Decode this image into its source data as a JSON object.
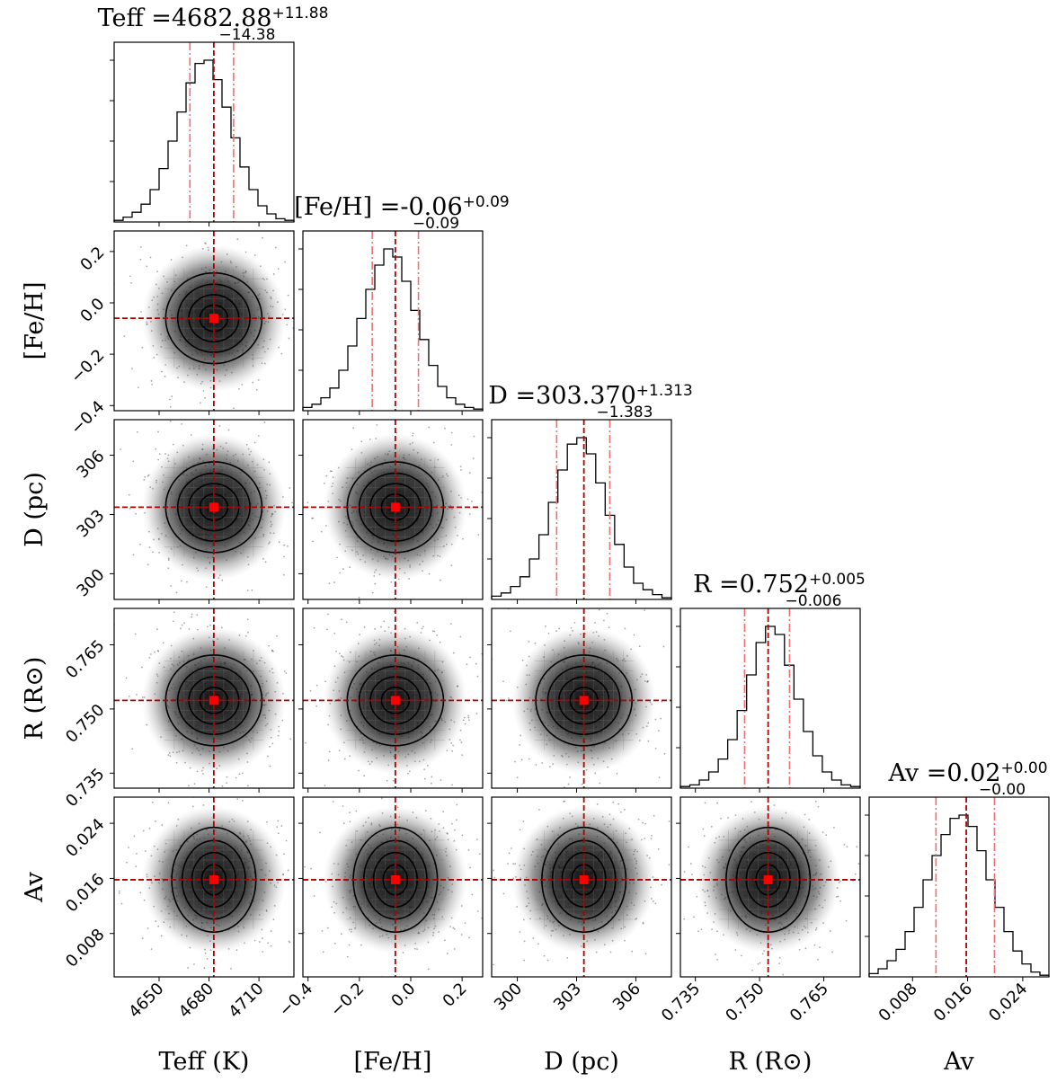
{
  "chart_data": {
    "type": "corner",
    "parameters": [
      {
        "key": "teff",
        "axis_label": "Teff (K)",
        "title_name": "Teff",
        "median": 4682.88,
        "median_text": "4682.88",
        "err_plus": "+11.88",
        "err_minus": "−14.38",
        "range": [
          4623,
          4731
        ],
        "ticks": [
          4650,
          4680,
          4710
        ],
        "tick_labels": [
          "4650",
          "4680",
          "4710"
        ],
        "q16": 4668.5,
        "q84": 4694.76
      },
      {
        "key": "feh",
        "axis_label": "[Fe/H]",
        "title_name": "[Fe/H]",
        "median": -0.06,
        "median_text": "-0.06",
        "err_plus": "+0.09",
        "err_minus": "−0.09",
        "range": [
          -0.42,
          0.28
        ],
        "ticks": [
          -0.4,
          -0.2,
          0.0,
          0.2
        ],
        "tick_labels": [
          "−0.4",
          "−0.2",
          "0.0",
          "0.2"
        ],
        "q16": -0.15,
        "q84": 0.03
      },
      {
        "key": "d",
        "axis_label": "D (pc)",
        "title_name": "D",
        "median": 303.37,
        "median_text": "303.370",
        "err_plus": "+1.313",
        "err_minus": "−1.383",
        "range": [
          298.7,
          307.8
        ],
        "ticks": [
          300,
          303,
          306
        ],
        "tick_labels": [
          "300",
          "303",
          "306"
        ],
        "q16": 301.99,
        "q84": 304.68
      },
      {
        "key": "r",
        "axis_label": "R (R⊙)",
        "title_name": "R",
        "median": 0.752,
        "median_text": "0.752",
        "err_plus": "+0.005",
        "err_minus": "−0.006",
        "range": [
          0.7315,
          0.7735
        ],
        "ticks": [
          0.735,
          0.75,
          0.765
        ],
        "tick_labels": [
          "0.735",
          "0.750",
          "0.765"
        ],
        "q16": 0.7465,
        "q84": 0.757
      },
      {
        "key": "av",
        "axis_label": "Av",
        "title_name": "Av",
        "median": 0.0158,
        "median_text": "0.02",
        "err_plus": "+0.00",
        "err_minus": "−0.00",
        "range": [
          0.0017,
          0.0278
        ],
        "ticks": [
          0.008,
          0.016,
          0.024
        ],
        "tick_labels": [
          "0.008",
          "0.016",
          "0.024"
        ],
        "q16": 0.0114,
        "q84": 0.0199
      }
    ],
    "histograms": [
      [
        0.01,
        0.03,
        0.06,
        0.11,
        0.2,
        0.33,
        0.5,
        0.68,
        0.86,
        0.98,
        1.0,
        0.88,
        0.71,
        0.52,
        0.34,
        0.2,
        0.1,
        0.05,
        0.02,
        0.01
      ],
      [
        0.02,
        0.04,
        0.08,
        0.14,
        0.25,
        0.4,
        0.57,
        0.75,
        0.9,
        1.0,
        0.95,
        0.8,
        0.62,
        0.44,
        0.28,
        0.15,
        0.08,
        0.04,
        0.02,
        0.01
      ],
      [
        0.02,
        0.04,
        0.08,
        0.14,
        0.25,
        0.4,
        0.6,
        0.8,
        0.96,
        1.0,
        0.9,
        0.72,
        0.52,
        0.34,
        0.2,
        0.1,
        0.06,
        0.03,
        0.01
      ],
      [
        0.01,
        0.02,
        0.05,
        0.1,
        0.18,
        0.3,
        0.48,
        0.7,
        0.9,
        1.0,
        0.95,
        0.76,
        0.55,
        0.35,
        0.2,
        0.1,
        0.05,
        0.02,
        0.01
      ],
      [
        0.02,
        0.05,
        0.1,
        0.17,
        0.28,
        0.43,
        0.6,
        0.75,
        0.88,
        0.98,
        1.0,
        0.93,
        0.78,
        0.6,
        0.43,
        0.28,
        0.16,
        0.08,
        0.03,
        0.01
      ]
    ],
    "contour_levels": [
      0.2,
      0.5,
      0.75,
      0.9
    ],
    "median_marker_color": "#ff0000",
    "median_line_color": "#b00000",
    "quantile_line_color": "#f07070"
  }
}
